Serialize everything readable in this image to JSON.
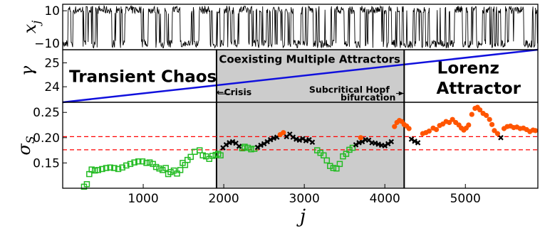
{
  "chart_data": [
    {
      "type": "line",
      "panel": "top",
      "ylabel": "x_j",
      "ylabel_main": "x",
      "ylabel_sub": "j",
      "yticks": [
        "10",
        "−10"
      ],
      "ytick_values": [
        10,
        -10
      ],
      "ylim": [
        -14,
        14
      ],
      "xlim": [
        0,
        5900
      ],
      "series": [
        {
          "color": "#000000",
          "description": "rapidly alternating signal between about -13 and 13"
        }
      ]
    },
    {
      "type": "line",
      "panel": "middle",
      "ylabel": "γ",
      "yticks": [
        "25",
        "24"
      ],
      "ytick_values": [
        25,
        24
      ],
      "ylim": [
        23.35,
        25.55
      ],
      "xlim": [
        0,
        5900
      ],
      "series": [
        {
          "color": "#1010dd",
          "x": [
            0,
            5900
          ],
          "y": [
            23.35,
            25.55
          ]
        }
      ],
      "annotations": [
        {
          "text": "Transient Chaos",
          "x": 80,
          "y": 24.2
        },
        {
          "text": "Coexisting Multiple Attractors",
          "x": 1940,
          "y": 25.0
        },
        {
          "text": "Lorenz",
          "x": 4650,
          "y": 24.55
        },
        {
          "text": "Attractor",
          "x": 4640,
          "y": 23.7
        },
        {
          "text": "←Crisis",
          "x": 1910,
          "y": 23.65
        },
        {
          "text": "Subcritical Hopf",
          "x": 3060,
          "y": 23.75
        },
        {
          "text": "bifurcation",
          "x": 3450,
          "y": 23.42
        }
      ]
    },
    {
      "type": "scatter",
      "panel": "bottom",
      "xlabel": "j",
      "ylabel": "σ_S",
      "ylabel_main": "σ",
      "ylabel_sub": "S",
      "xlim": [
        0,
        5900
      ],
      "ylim": [
        0.1,
        0.27
      ],
      "xticks": [
        "1000",
        "2000",
        "3000",
        "4000",
        "5000"
      ],
      "xtick_values": [
        1000,
        2000,
        3000,
        4000,
        5000
      ],
      "yticks": [
        "0.25",
        "0.20",
        "0.15"
      ],
      "ytick_values": [
        0.25,
        0.2,
        0.15
      ],
      "hlines": [
        0.202,
        0.176
      ],
      "series": [
        {
          "marker": "square",
          "color": "#22bb22",
          "points": [
            [
              265,
              0.103
            ],
            [
              300,
              0.108
            ],
            [
              330,
              0.128
            ],
            [
              360,
              0.137
            ],
            [
              400,
              0.135
            ],
            [
              440,
              0.136
            ],
            [
              490,
              0.138
            ],
            [
              540,
              0.14
            ],
            [
              590,
              0.141
            ],
            [
              640,
              0.14
            ],
            [
              690,
              0.138
            ],
            [
              740,
              0.141
            ],
            [
              790,
              0.145
            ],
            [
              840,
              0.148
            ],
            [
              890,
              0.151
            ],
            [
              940,
              0.153
            ],
            [
              990,
              0.153
            ],
            [
              1040,
              0.15
            ],
            [
              1080,
              0.151
            ],
            [
              1120,
              0.148
            ],
            [
              1160,
              0.142
            ],
            [
              1200,
              0.139
            ],
            [
              1240,
              0.136
            ],
            [
              1280,
              0.14
            ],
            [
              1310,
              0.128
            ],
            [
              1340,
              0.132
            ],
            [
              1380,
              0.135
            ],
            [
              1420,
              0.129
            ],
            [
              1460,
              0.136
            ],
            [
              1490,
              0.15
            ],
            [
              1520,
              0.146
            ],
            [
              1550,
              0.156
            ],
            [
              1590,
              0.162
            ],
            [
              1640,
              0.172
            ],
            [
              1700,
              0.175
            ],
            [
              1740,
              0.165
            ],
            [
              1780,
              0.163
            ],
            [
              1820,
              0.158
            ],
            [
              1860,
              0.164
            ],
            [
              1900,
              0.166
            ],
            [
              1930,
              0.168
            ],
            [
              1960,
              0.165
            ],
            [
              2230,
              0.179
            ],
            [
              2260,
              0.182
            ],
            [
              2300,
              0.18
            ],
            [
              2340,
              0.177
            ],
            [
              2380,
              0.178
            ],
            [
              3160,
              0.175
            ],
            [
              3200,
              0.17
            ],
            [
              3240,
              0.165
            ],
            [
              3280,
              0.155
            ],
            [
              3320,
              0.144
            ],
            [
              3360,
              0.14
            ],
            [
              3400,
              0.139
            ],
            [
              3440,
              0.148
            ],
            [
              3480,
              0.163
            ],
            [
              3520,
              0.168
            ],
            [
              3560,
              0.176
            ],
            [
              3600,
              0.18
            ]
          ]
        },
        {
          "marker": "cross",
          "color": "#000000",
          "points": [
            [
              1990,
              0.18
            ],
            [
              2030,
              0.186
            ],
            [
              2070,
              0.19
            ],
            [
              2110,
              0.192
            ],
            [
              2150,
              0.189
            ],
            [
              2190,
              0.183
            ],
            [
              2420,
              0.181
            ],
            [
              2460,
              0.185
            ],
            [
              2500,
              0.188
            ],
            [
              2540,
              0.192
            ],
            [
              2580,
              0.196
            ],
            [
              2620,
              0.199
            ],
            [
              2660,
              0.201
            ],
            [
              2780,
              0.202
            ],
            [
              2820,
              0.207
            ],
            [
              2860,
              0.201
            ],
            [
              2900,
              0.197
            ],
            [
              2940,
              0.195
            ],
            [
              2980,
              0.198
            ],
            [
              3020,
              0.194
            ],
            [
              3060,
              0.196
            ],
            [
              3100,
              0.191
            ],
            [
              3640,
              0.186
            ],
            [
              3680,
              0.19
            ],
            [
              3720,
              0.192
            ],
            [
              3760,
              0.196
            ],
            [
              3800,
              0.195
            ],
            [
              3840,
              0.19
            ],
            [
              3880,
              0.189
            ],
            [
              3920,
              0.187
            ],
            [
              3960,
              0.185
            ],
            [
              4000,
              0.184
            ],
            [
              4040,
              0.188
            ],
            [
              4080,
              0.192
            ],
            [
              4330,
              0.197
            ],
            [
              4370,
              0.193
            ],
            [
              4410,
              0.19
            ],
            [
              5440,
              0.2
            ]
          ]
        },
        {
          "marker": "circle",
          "color": "#ff5500",
          "points": [
            [
              2700,
              0.206
            ],
            [
              2740,
              0.21
            ],
            [
              3700,
              0.2
            ],
            [
              4120,
              0.222
            ],
            [
              4150,
              0.23
            ],
            [
              4180,
              0.234
            ],
            [
              4210,
              0.232
            ],
            [
              4240,
              0.226
            ],
            [
              4270,
              0.223
            ],
            [
              4300,
              0.218
            ],
            [
              4470,
              0.208
            ],
            [
              4510,
              0.21
            ],
            [
              4550,
              0.213
            ],
            [
              4600,
              0.219
            ],
            [
              4640,
              0.216
            ],
            [
              4680,
              0.224
            ],
            [
              4720,
              0.227
            ],
            [
              4760,
              0.232
            ],
            [
              4800,
              0.23
            ],
            [
              4840,
              0.236
            ],
            [
              4880,
              0.23
            ],
            [
              4920,
              0.225
            ],
            [
              4950,
              0.219
            ],
            [
              4980,
              0.215
            ],
            [
              5010,
              0.219
            ],
            [
              5040,
              0.225
            ],
            [
              5080,
              0.246
            ],
            [
              5120,
              0.258
            ],
            [
              5150,
              0.26
            ],
            [
              5180,
              0.255
            ],
            [
              5220,
              0.248
            ],
            [
              5260,
              0.244
            ],
            [
              5300,
              0.236
            ],
            [
              5330,
              0.226
            ],
            [
              5360,
              0.214
            ],
            [
              5400,
              0.208
            ],
            [
              5480,
              0.218
            ],
            [
              5520,
              0.222
            ],
            [
              5560,
              0.223
            ],
            [
              5600,
              0.22
            ],
            [
              5640,
              0.221
            ],
            [
              5680,
              0.218
            ],
            [
              5720,
              0.219
            ],
            [
              5760,
              0.216
            ],
            [
              5800,
              0.212
            ],
            [
              5840,
              0.215
            ],
            [
              5870,
              0.214
            ]
          ]
        }
      ]
    }
  ],
  "regions": {
    "shaded_x": [
      1910,
      4240
    ],
    "shade_color": "#cccccc"
  },
  "colors": {
    "green": "#22bb22",
    "orange": "#ff5500",
    "black": "#000000",
    "blue": "#1010dd",
    "red_dash": "#ff0000"
  }
}
